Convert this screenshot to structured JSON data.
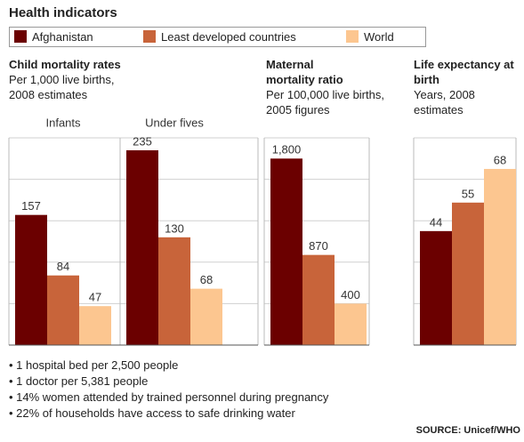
{
  "title": "Health indicators",
  "legend": [
    {
      "name": "Afghanistan",
      "color": "#6b0000"
    },
    {
      "name": "Least developed countries",
      "color": "#c8643a"
    },
    {
      "name": "World",
      "color": "#fcc690"
    }
  ],
  "chart_data": [
    {
      "type": "bar",
      "title": "Child mortality rates",
      "subtitle": "Per 1,000 live births, 2008 estimates",
      "categories": [
        "Infants",
        "Under fives"
      ],
      "series": [
        {
          "name": "Afghanistan",
          "color": "#6b0000",
          "values": [
            157,
            235
          ]
        },
        {
          "name": "Least developed countries",
          "color": "#c8643a",
          "values": [
            84,
            130
          ]
        },
        {
          "name": "World",
          "color": "#fcc690",
          "values": [
            47,
            68
          ]
        }
      ],
      "ylim": [
        0,
        250
      ],
      "yticks": [
        0,
        50,
        100,
        150,
        200,
        250
      ],
      "grid": true
    },
    {
      "type": "bar",
      "title": "Maternal mortality ratio",
      "subtitle": "Per 100,000 live births, 2005 figures",
      "categories": [
        null
      ],
      "series": [
        {
          "name": "Afghanistan",
          "color": "#6b0000",
          "values": [
            1800
          ],
          "value_labels": [
            "1,800"
          ]
        },
        {
          "name": "Least developed countries",
          "color": "#c8643a",
          "values": [
            870
          ]
        },
        {
          "name": "World",
          "color": "#fcc690",
          "values": [
            400
          ]
        }
      ],
      "ylim": [
        0,
        2000
      ],
      "yticks": [
        0,
        400,
        800,
        1200,
        1600,
        2000
      ],
      "grid": true
    },
    {
      "type": "bar",
      "title": "Life expectancy at birth",
      "subtitle": "Years, 2008 estimates",
      "categories": [
        null
      ],
      "series": [
        {
          "name": "Afghanistan",
          "color": "#6b0000",
          "values": [
            44
          ]
        },
        {
          "name": "Least developed countries",
          "color": "#c8643a",
          "values": [
            55
          ]
        },
        {
          "name": "World",
          "color": "#fcc690",
          "values": [
            68
          ]
        }
      ],
      "ylim": [
        0,
        80
      ],
      "yticks": [
        0,
        16,
        32,
        48,
        64,
        80
      ],
      "grid": true
    }
  ],
  "notes": [
    "• 1 hospital bed per 2,500 people",
    "• 1 doctor per 5,381 people",
    "• 14% women attended by trained personnel during pregnancy",
    "• 22% of households have access to safe drinking water"
  ],
  "source": "SOURCE: Unicef/WHO"
}
